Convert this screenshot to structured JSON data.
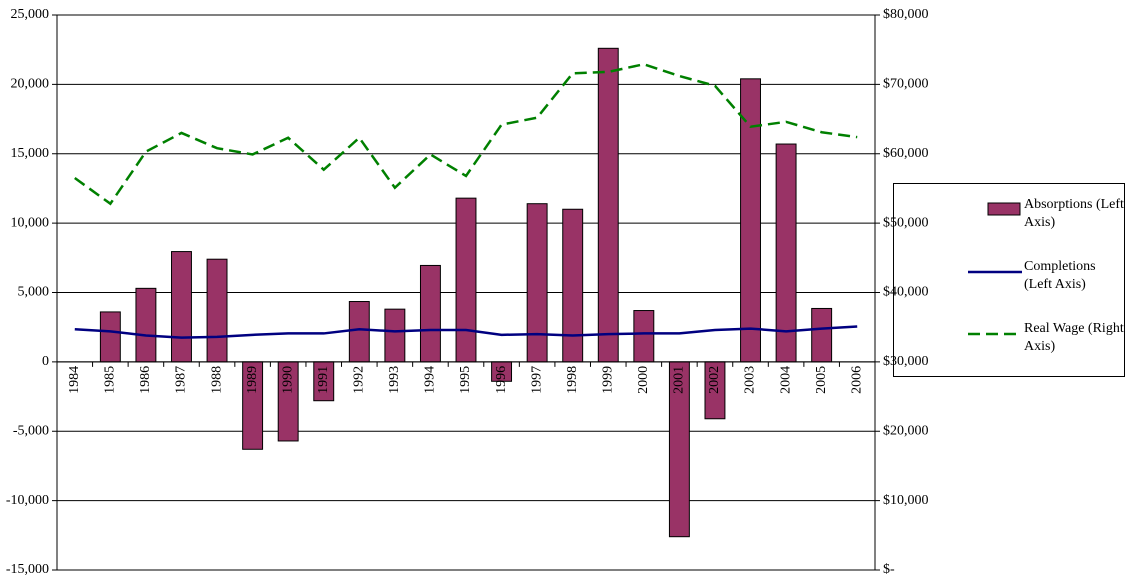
{
  "chart_data": {
    "type": "bar-line",
    "categories": [
      "1984",
      "1985",
      "1986",
      "1987",
      "1988",
      "1989",
      "1990",
      "1991",
      "1992",
      "1993",
      "1994",
      "1995",
      "1996",
      "1997",
      "1998",
      "1999",
      "2000",
      "2001",
      "2002",
      "2003",
      "2004",
      "2005",
      "2006"
    ],
    "series": [
      {
        "name": "Absorptions (Left Axis)",
        "type": "bar",
        "color": "#993366",
        "values": [
          0,
          3600,
          5300,
          7950,
          7400,
          -6300,
          -5700,
          -2800,
          4350,
          3800,
          6950,
          11800,
          -1400,
          11400,
          11000,
          22600,
          3700,
          -12600,
          -4100,
          20400,
          15700,
          3850,
          0
        ]
      },
      {
        "name": "Completions (Left Axis)",
        "type": "line",
        "color": "#000080",
        "values": [
          2350,
          2200,
          1900,
          1750,
          1800,
          1950,
          2050,
          2050,
          2350,
          2200,
          2300,
          2300,
          1950,
          2000,
          1900,
          2000,
          2050,
          2050,
          2300,
          2400,
          2200,
          2400,
          2550
        ]
      },
      {
        "name": "Real Wage (Right Axis)",
        "type": "line",
        "dashed": true,
        "axis": "y2",
        "color": "#008000",
        "values": [
          56500,
          52800,
          60300,
          63000,
          60800,
          59900,
          62300,
          57700,
          62300,
          55100,
          59900,
          56800,
          64200,
          65200,
          71600,
          71800,
          72900,
          71200,
          69800,
          63900,
          64600,
          63100,
          62400
        ]
      }
    ],
    "ylim": [
      -15000,
      25000
    ],
    "yticks": [
      {
        "value": -15000,
        "label": "-15,000"
      },
      {
        "value": -10000,
        "label": "-10,000"
      },
      {
        "value": -5000,
        "label": "-5,000"
      },
      0,
      {
        "value": 5000,
        "label": "5,000"
      },
      {
        "value": 10000,
        "label": "10,000"
      },
      {
        "value": 15000,
        "label": "15,000"
      },
      {
        "value": 20000,
        "label": "20,000"
      },
      {
        "value": 25000,
        "label": "25,000"
      }
    ],
    "y2lim": [
      0,
      80000
    ],
    "y2ticks": [
      {
        "value": 0,
        "label": "$-"
      },
      {
        "value": 10000,
        "label": "$10,000"
      },
      {
        "value": 20000,
        "label": "$20,000"
      },
      {
        "value": 30000,
        "label": "$30,000"
      },
      {
        "value": 40000,
        "label": "$40,000"
      },
      {
        "value": 50000,
        "label": "$50,000"
      },
      {
        "value": 60000,
        "label": "$60,000"
      },
      {
        "value": 70000,
        "label": "$70,000"
      },
      {
        "value": 80000,
        "label": "$80,000"
      }
    ],
    "grid": true
  }
}
